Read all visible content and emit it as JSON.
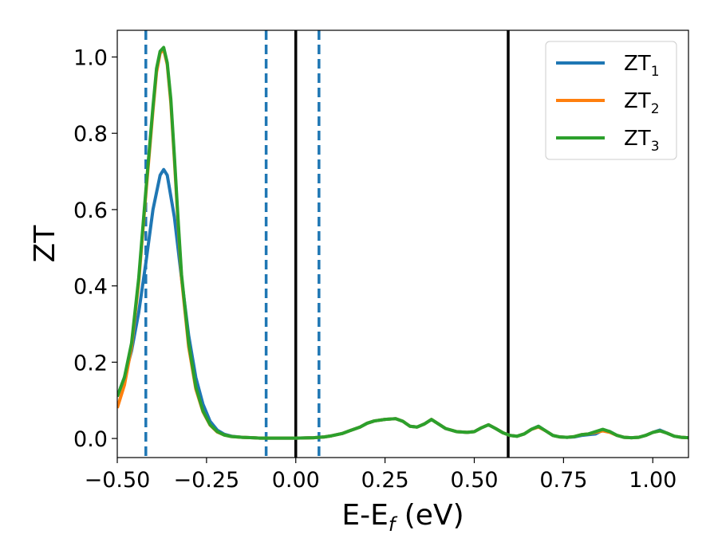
{
  "chart_data": {
    "type": "line",
    "title": "",
    "xlabel": "E-E",
    "xlabel_sub": "f",
    "xlabel_unit": " (eV)",
    "ylabel": "ZT",
    "xlim": [
      -0.5,
      1.1
    ],
    "ylim": [
      -0.05,
      1.07
    ],
    "xticks": [
      -0.5,
      -0.25,
      0.0,
      0.25,
      0.5,
      0.75,
      1.0
    ],
    "xtick_labels": [
      "−0.50",
      "−0.25",
      "0.00",
      "0.25",
      "0.50",
      "0.75",
      "1.00"
    ],
    "yticks": [
      0.0,
      0.2,
      0.4,
      0.6,
      0.8,
      1.0
    ],
    "ytick_labels": [
      "0.0",
      "0.2",
      "0.4",
      "0.6",
      "0.8",
      "1.0"
    ],
    "grid": false,
    "legend_position": "top-right",
    "colors": {
      "ZT1": "#1f77b4",
      "ZT2": "#ff7f0e",
      "ZT3": "#2ca02c",
      "solid_lines": "#000000",
      "dashed_lines": "#1f77b4"
    },
    "vertical_lines": [
      {
        "x": -0.42,
        "style": "dashed",
        "color": "#1f77b4"
      },
      {
        "x": -0.083,
        "style": "dashed",
        "color": "#1f77b4"
      },
      {
        "x": 0.0,
        "style": "solid",
        "color": "#000000"
      },
      {
        "x": 0.065,
        "style": "dashed",
        "color": "#1f77b4"
      },
      {
        "x": 0.595,
        "style": "solid",
        "color": "#000000"
      }
    ],
    "series": [
      {
        "name": "ZT",
        "sub": "1",
        "color": "#1f77b4",
        "x": [
          -0.5,
          -0.48,
          -0.46,
          -0.44,
          -0.42,
          -0.4,
          -0.38,
          -0.37,
          -0.36,
          -0.34,
          -0.32,
          -0.3,
          -0.28,
          -0.26,
          -0.24,
          -0.22,
          -0.2,
          -0.18,
          -0.15,
          -0.12,
          -0.1,
          -0.05,
          0.0,
          0.05,
          0.08,
          0.1,
          0.13,
          0.15,
          0.18,
          0.2,
          0.22,
          0.25,
          0.28,
          0.3,
          0.32,
          0.34,
          0.36,
          0.38,
          0.4,
          0.42,
          0.45,
          0.48,
          0.5,
          0.52,
          0.54,
          0.56,
          0.58,
          0.6,
          0.62,
          0.64,
          0.66,
          0.68,
          0.7,
          0.72,
          0.74,
          0.76,
          0.78,
          0.8,
          0.82,
          0.84,
          0.86,
          0.88,
          0.9,
          0.92,
          0.94,
          0.96,
          0.98,
          1.0,
          1.02,
          1.04,
          1.06,
          1.08,
          1.1
        ],
        "y": [
          0.11,
          0.16,
          0.23,
          0.33,
          0.46,
          0.6,
          0.69,
          0.705,
          0.69,
          0.58,
          0.42,
          0.27,
          0.16,
          0.09,
          0.045,
          0.022,
          0.011,
          0.006,
          0.003,
          0.002,
          0.001,
          0.001,
          0.001,
          0.002,
          0.004,
          0.007,
          0.013,
          0.02,
          0.03,
          0.04,
          0.046,
          0.05,
          0.052,
          0.045,
          0.032,
          0.03,
          0.038,
          0.05,
          0.038,
          0.026,
          0.018,
          0.016,
          0.018,
          0.028,
          0.036,
          0.026,
          0.015,
          0.008,
          0.006,
          0.012,
          0.024,
          0.032,
          0.02,
          0.008,
          0.004,
          0.003,
          0.004,
          0.008,
          0.01,
          0.012,
          0.022,
          0.018,
          0.008,
          0.003,
          0.002,
          0.003,
          0.008,
          0.016,
          0.022,
          0.014,
          0.006,
          0.003,
          0.002
        ]
      },
      {
        "name": "ZT",
        "sub": "2",
        "color": "#ff7f0e",
        "x": [
          -0.5,
          -0.48,
          -0.46,
          -0.44,
          -0.42,
          -0.4,
          -0.39,
          -0.38,
          -0.37,
          -0.36,
          -0.35,
          -0.34,
          -0.33,
          -0.32,
          -0.3,
          -0.28,
          -0.26,
          -0.24,
          -0.22,
          -0.2,
          -0.18,
          -0.15,
          -0.12,
          -0.1,
          -0.05,
          0.0,
          0.05,
          0.08,
          0.1,
          0.13,
          0.15,
          0.18,
          0.2,
          0.22,
          0.25,
          0.28,
          0.3,
          0.32,
          0.34,
          0.36,
          0.38,
          0.4,
          0.42,
          0.45,
          0.48,
          0.5,
          0.52,
          0.54,
          0.56,
          0.58,
          0.6,
          0.62,
          0.64,
          0.66,
          0.68,
          0.7,
          0.72,
          0.74,
          0.76,
          0.78,
          0.8,
          0.82,
          0.84,
          0.86,
          0.88,
          0.9,
          0.92,
          0.94,
          0.96,
          0.98,
          1.0,
          1.02,
          1.04,
          1.06,
          1.08,
          1.1
        ],
        "y": [
          0.08,
          0.14,
          0.24,
          0.41,
          0.64,
          0.86,
          0.96,
          1.01,
          1.02,
          0.98,
          0.88,
          0.73,
          0.57,
          0.42,
          0.24,
          0.13,
          0.07,
          0.035,
          0.017,
          0.009,
          0.005,
          0.003,
          0.002,
          0.001,
          0.001,
          0.001,
          0.002,
          0.004,
          0.007,
          0.013,
          0.02,
          0.03,
          0.04,
          0.046,
          0.05,
          0.052,
          0.045,
          0.032,
          0.03,
          0.038,
          0.05,
          0.038,
          0.026,
          0.018,
          0.016,
          0.018,
          0.028,
          0.036,
          0.026,
          0.015,
          0.008,
          0.006,
          0.012,
          0.024,
          0.03,
          0.02,
          0.008,
          0.004,
          0.003,
          0.005,
          0.01,
          0.012,
          0.016,
          0.02,
          0.016,
          0.008,
          0.003,
          0.002,
          0.003,
          0.008,
          0.016,
          0.02,
          0.014,
          0.006,
          0.003,
          0.002
        ]
      },
      {
        "name": "ZT",
        "sub": "3",
        "color": "#2ca02c",
        "x": [
          -0.5,
          -0.48,
          -0.46,
          -0.44,
          -0.42,
          -0.4,
          -0.39,
          -0.38,
          -0.37,
          -0.36,
          -0.35,
          -0.34,
          -0.33,
          -0.32,
          -0.3,
          -0.28,
          -0.26,
          -0.24,
          -0.22,
          -0.2,
          -0.18,
          -0.15,
          -0.12,
          -0.1,
          -0.05,
          0.0,
          0.05,
          0.08,
          0.1,
          0.13,
          0.15,
          0.18,
          0.2,
          0.22,
          0.25,
          0.28,
          0.3,
          0.32,
          0.34,
          0.36,
          0.38,
          0.4,
          0.42,
          0.45,
          0.48,
          0.5,
          0.52,
          0.54,
          0.56,
          0.58,
          0.6,
          0.62,
          0.64,
          0.66,
          0.68,
          0.7,
          0.72,
          0.74,
          0.76,
          0.78,
          0.8,
          0.82,
          0.84,
          0.86,
          0.88,
          0.9,
          0.92,
          0.94,
          0.96,
          0.98,
          1.0,
          1.02,
          1.04,
          1.06,
          1.08,
          1.1
        ],
        "y": [
          0.11,
          0.16,
          0.25,
          0.42,
          0.65,
          0.87,
          0.97,
          1.015,
          1.025,
          0.985,
          0.89,
          0.74,
          0.58,
          0.43,
          0.25,
          0.135,
          0.072,
          0.036,
          0.018,
          0.009,
          0.005,
          0.003,
          0.002,
          0.001,
          0.001,
          0.001,
          0.002,
          0.004,
          0.007,
          0.013,
          0.02,
          0.03,
          0.04,
          0.046,
          0.05,
          0.052,
          0.045,
          0.032,
          0.03,
          0.038,
          0.05,
          0.038,
          0.026,
          0.018,
          0.016,
          0.018,
          0.028,
          0.036,
          0.026,
          0.015,
          0.008,
          0.006,
          0.012,
          0.024,
          0.032,
          0.02,
          0.008,
          0.004,
          0.003,
          0.005,
          0.01,
          0.012,
          0.018,
          0.024,
          0.018,
          0.008,
          0.003,
          0.002,
          0.003,
          0.008,
          0.016,
          0.02,
          0.014,
          0.006,
          0.003,
          0.002
        ]
      }
    ]
  }
}
